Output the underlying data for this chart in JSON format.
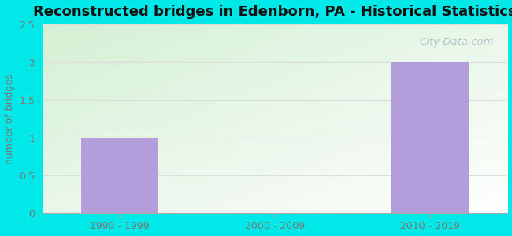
{
  "title": "Reconstructed bridges in Edenborn, PA - Historical Statistics",
  "categories": [
    "1990 - 1999",
    "2000 - 2009",
    "2010 - 2019"
  ],
  "values": [
    1,
    0,
    2
  ],
  "bar_color": "#b39ddb",
  "bar_positions": [
    0,
    1,
    2
  ],
  "bar_width": 0.5,
  "ylabel": "number of bridges",
  "ylim": [
    0,
    2.5
  ],
  "yticks": [
    0,
    0.5,
    1,
    1.5,
    2,
    2.5
  ],
  "background_outer": "#00e8e8",
  "background_plot_top_left": "#d4f0d4",
  "background_plot_bottom_right": "#f5fff5",
  "title_fontsize": 13,
  "ylabel_fontsize": 9,
  "tick_fontsize": 9,
  "tick_color": "#777777",
  "watermark_text": "City-Data.com",
  "watermark_color": "#aabbc8",
  "grid_color": "#dddddd",
  "spine_color": "#aaaaaa",
  "ylabel_color": "#777777"
}
